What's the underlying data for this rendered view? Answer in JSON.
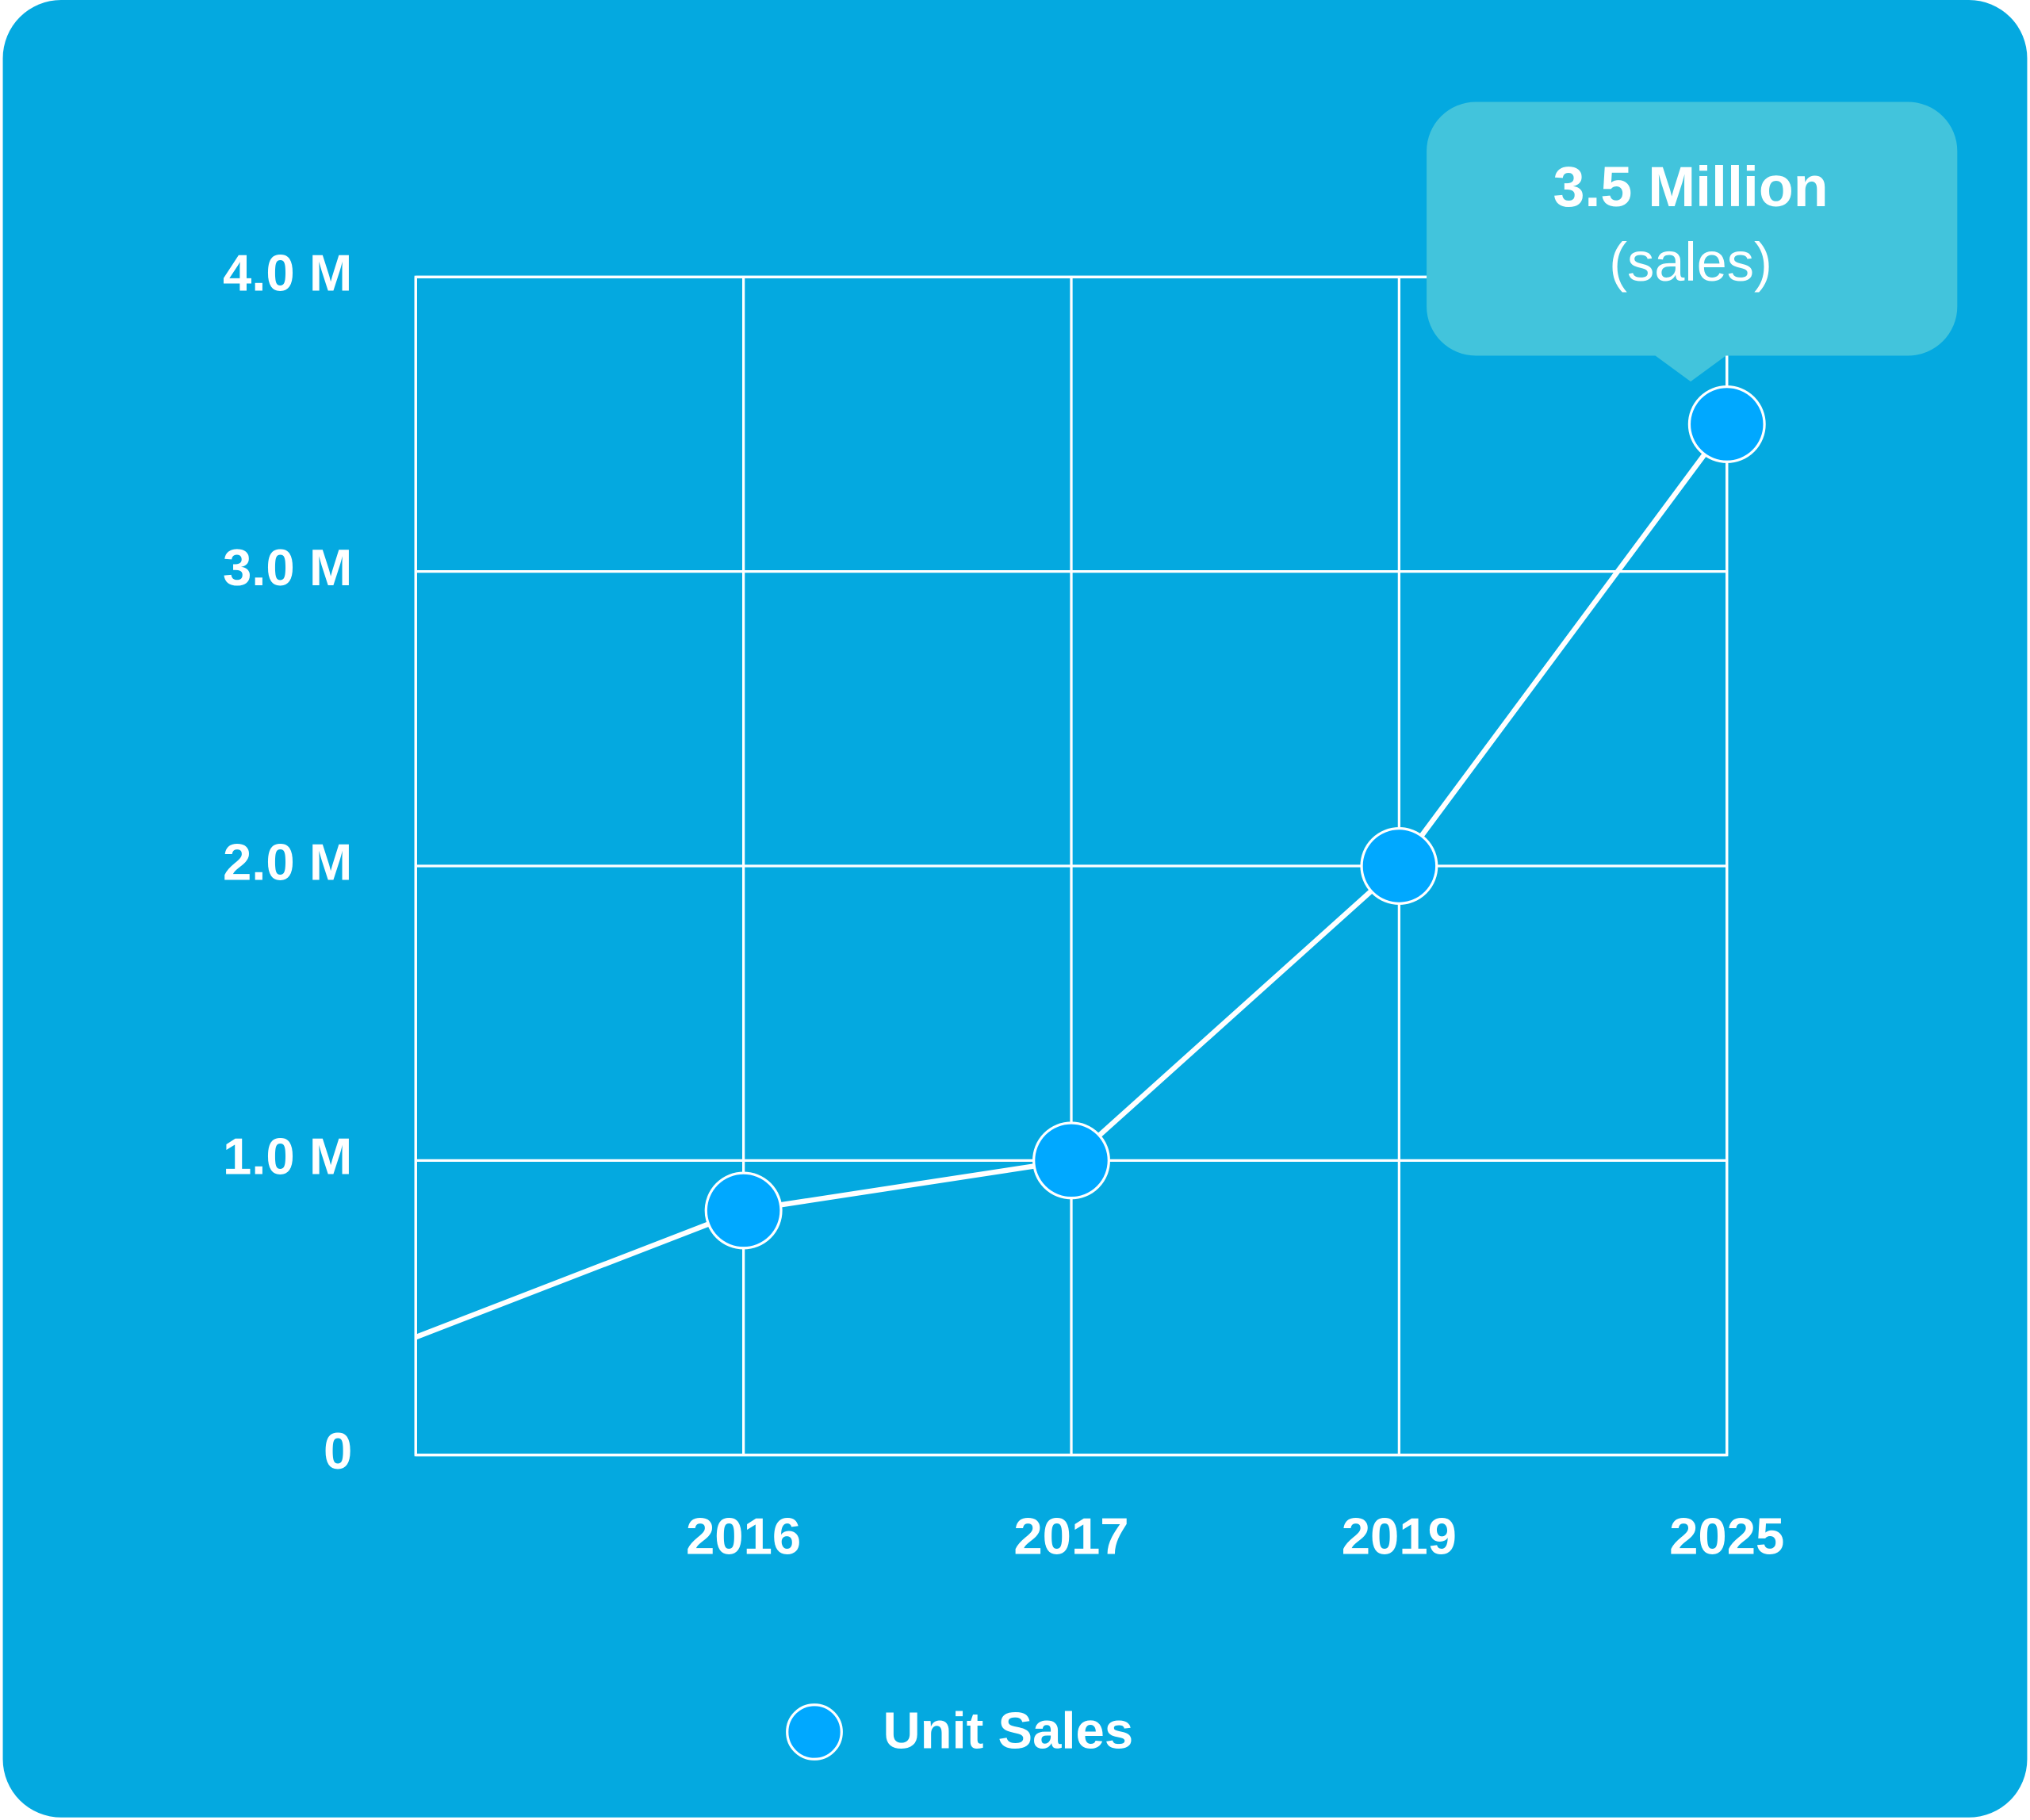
{
  "chart_data": {
    "type": "line",
    "categories": [
      null,
      "2016",
      "2017",
      "2019",
      "2025"
    ],
    "series": [
      {
        "name": "Unit Sales",
        "color": "#00a8ff",
        "values": [
          0.4,
          0.83,
          1.0,
          2.0,
          3.5
        ]
      }
    ],
    "ylim": [
      0,
      4
    ],
    "yticks": [
      0,
      {
        "value": 1,
        "label": "1.0 M"
      },
      {
        "value": 2,
        "label": "2.0 M"
      },
      {
        "value": 3,
        "label": "3.0 M"
      },
      {
        "value": 4,
        "label": "4.0 M"
      }
    ],
    "grid": true,
    "annotation": {
      "text": "3.5 Million",
      "subtext": "(sales)"
    },
    "legend": "bottom"
  }
}
